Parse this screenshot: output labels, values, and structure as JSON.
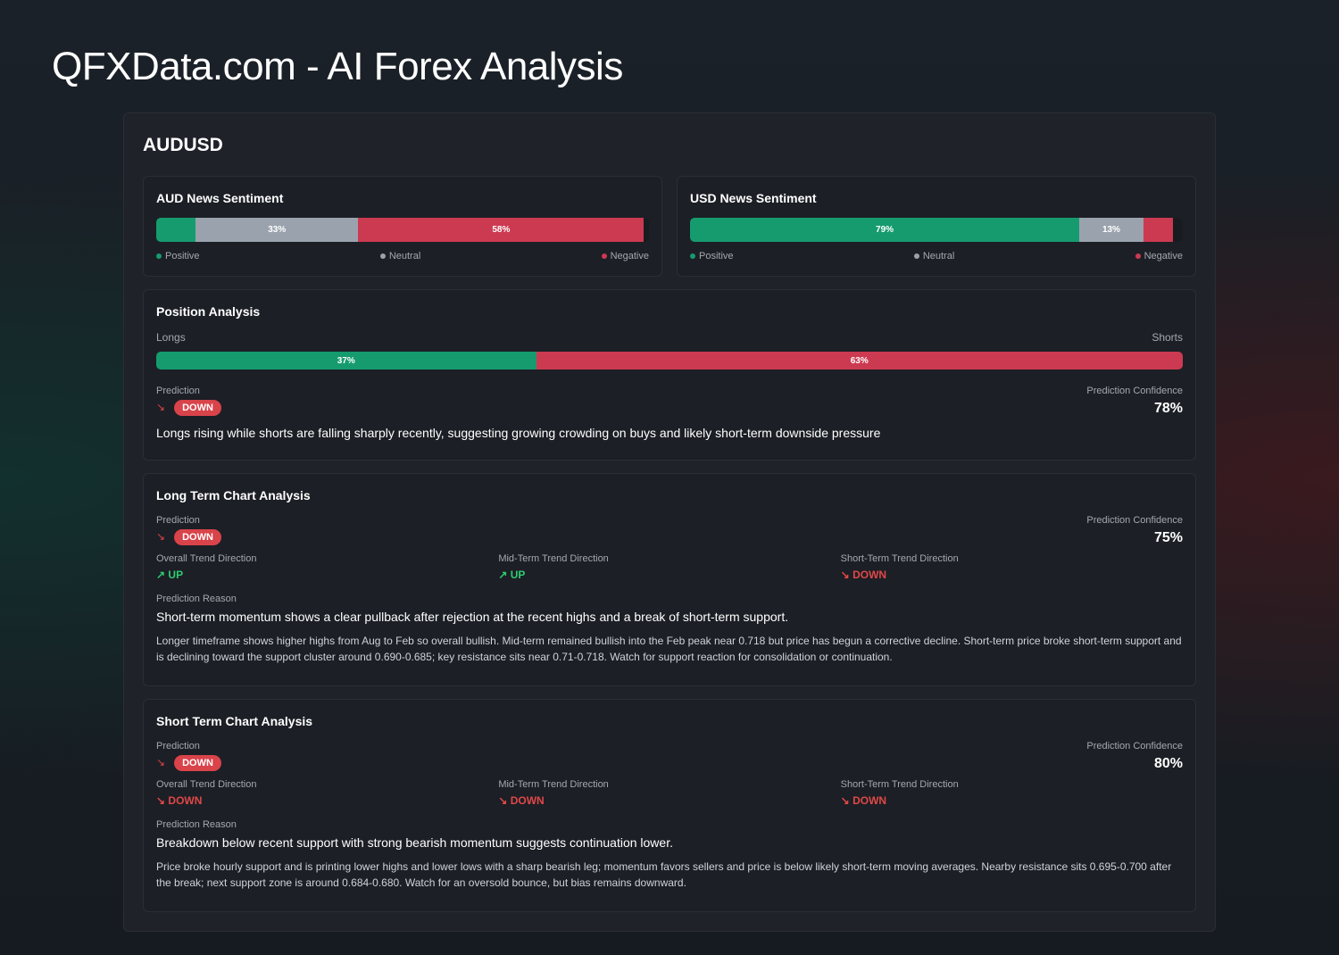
{
  "title": "QFXData.com - AI Forex Analysis",
  "pair": "AUDUSD",
  "sentiment": [
    {
      "title": "AUD News Sentiment",
      "positive": 8,
      "neutral": 33,
      "negative": 58,
      "neutral_label": "33%",
      "negative_label": "58%",
      "positive_label": "",
      "legend": [
        "Positive",
        "Neutral",
        "Negative"
      ]
    },
    {
      "title": "USD News Sentiment",
      "positive": 79,
      "neutral": 13,
      "negative": 6,
      "positive_label": "79%",
      "neutral_label": "13%",
      "negative_label": "",
      "legend": [
        "Positive",
        "Neutral",
        "Negative"
      ]
    }
  ],
  "position": {
    "title": "Position Analysis",
    "longs_label": "Longs",
    "shorts_label": "Shorts",
    "longs": 37,
    "shorts": 63,
    "longs_text": "37%",
    "shorts_text": "63%",
    "prediction_label": "Prediction",
    "prediction": "DOWN",
    "confidence_label": "Prediction Confidence",
    "confidence": "78%",
    "reason": "Longs rising while shorts are falling sharply recently, suggesting growing crowding on buys and likely short-term downside pressure"
  },
  "long_term": {
    "title": "Long Term Chart Analysis",
    "prediction_label": "Prediction",
    "prediction": "DOWN",
    "confidence_label": "Prediction Confidence",
    "confidence": "75%",
    "trends": [
      {
        "label": "Overall Trend Direction",
        "value": "UP"
      },
      {
        "label": "Mid-Term Trend Direction",
        "value": "UP"
      },
      {
        "label": "Short-Term Trend Direction",
        "value": "DOWN"
      }
    ],
    "reason_label": "Prediction Reason",
    "reason": "Short-term momentum shows a clear pullback after rejection at the recent highs and a break of short-term support.",
    "detail": "Longer timeframe shows higher highs from Aug to Feb so overall bullish. Mid-term remained bullish into the Feb peak near 0.718 but price has begun a corrective decline. Short-term price broke short-term support and is declining toward the support cluster around 0.690-0.685; key resistance sits near 0.71-0.718. Watch for support reaction for consolidation or continuation."
  },
  "short_term": {
    "title": "Short Term Chart Analysis",
    "prediction_label": "Prediction",
    "prediction": "DOWN",
    "confidence_label": "Prediction Confidence",
    "confidence": "80%",
    "trends": [
      {
        "label": "Overall Trend Direction",
        "value": "DOWN"
      },
      {
        "label": "Mid-Term Trend Direction",
        "value": "DOWN"
      },
      {
        "label": "Short-Term Trend Direction",
        "value": "DOWN"
      }
    ],
    "reason_label": "Prediction Reason",
    "reason": "Breakdown below recent support with strong bearish momentum suggests continuation lower.",
    "detail": "Price broke hourly support and is printing lower highs and lower lows with a sharp bearish leg; momentum favors sellers and price is below likely short-term moving averages. Nearby resistance sits 0.695-0.700 after the break; next support zone is around 0.684-0.680. Watch for an oversold bounce, but bias remains downward."
  },
  "colors": {
    "positive": "#169b6f",
    "neutral": "#9aa3ad",
    "negative": "#cc3a52",
    "up": "#2ecc71",
    "down": "#e04848"
  }
}
